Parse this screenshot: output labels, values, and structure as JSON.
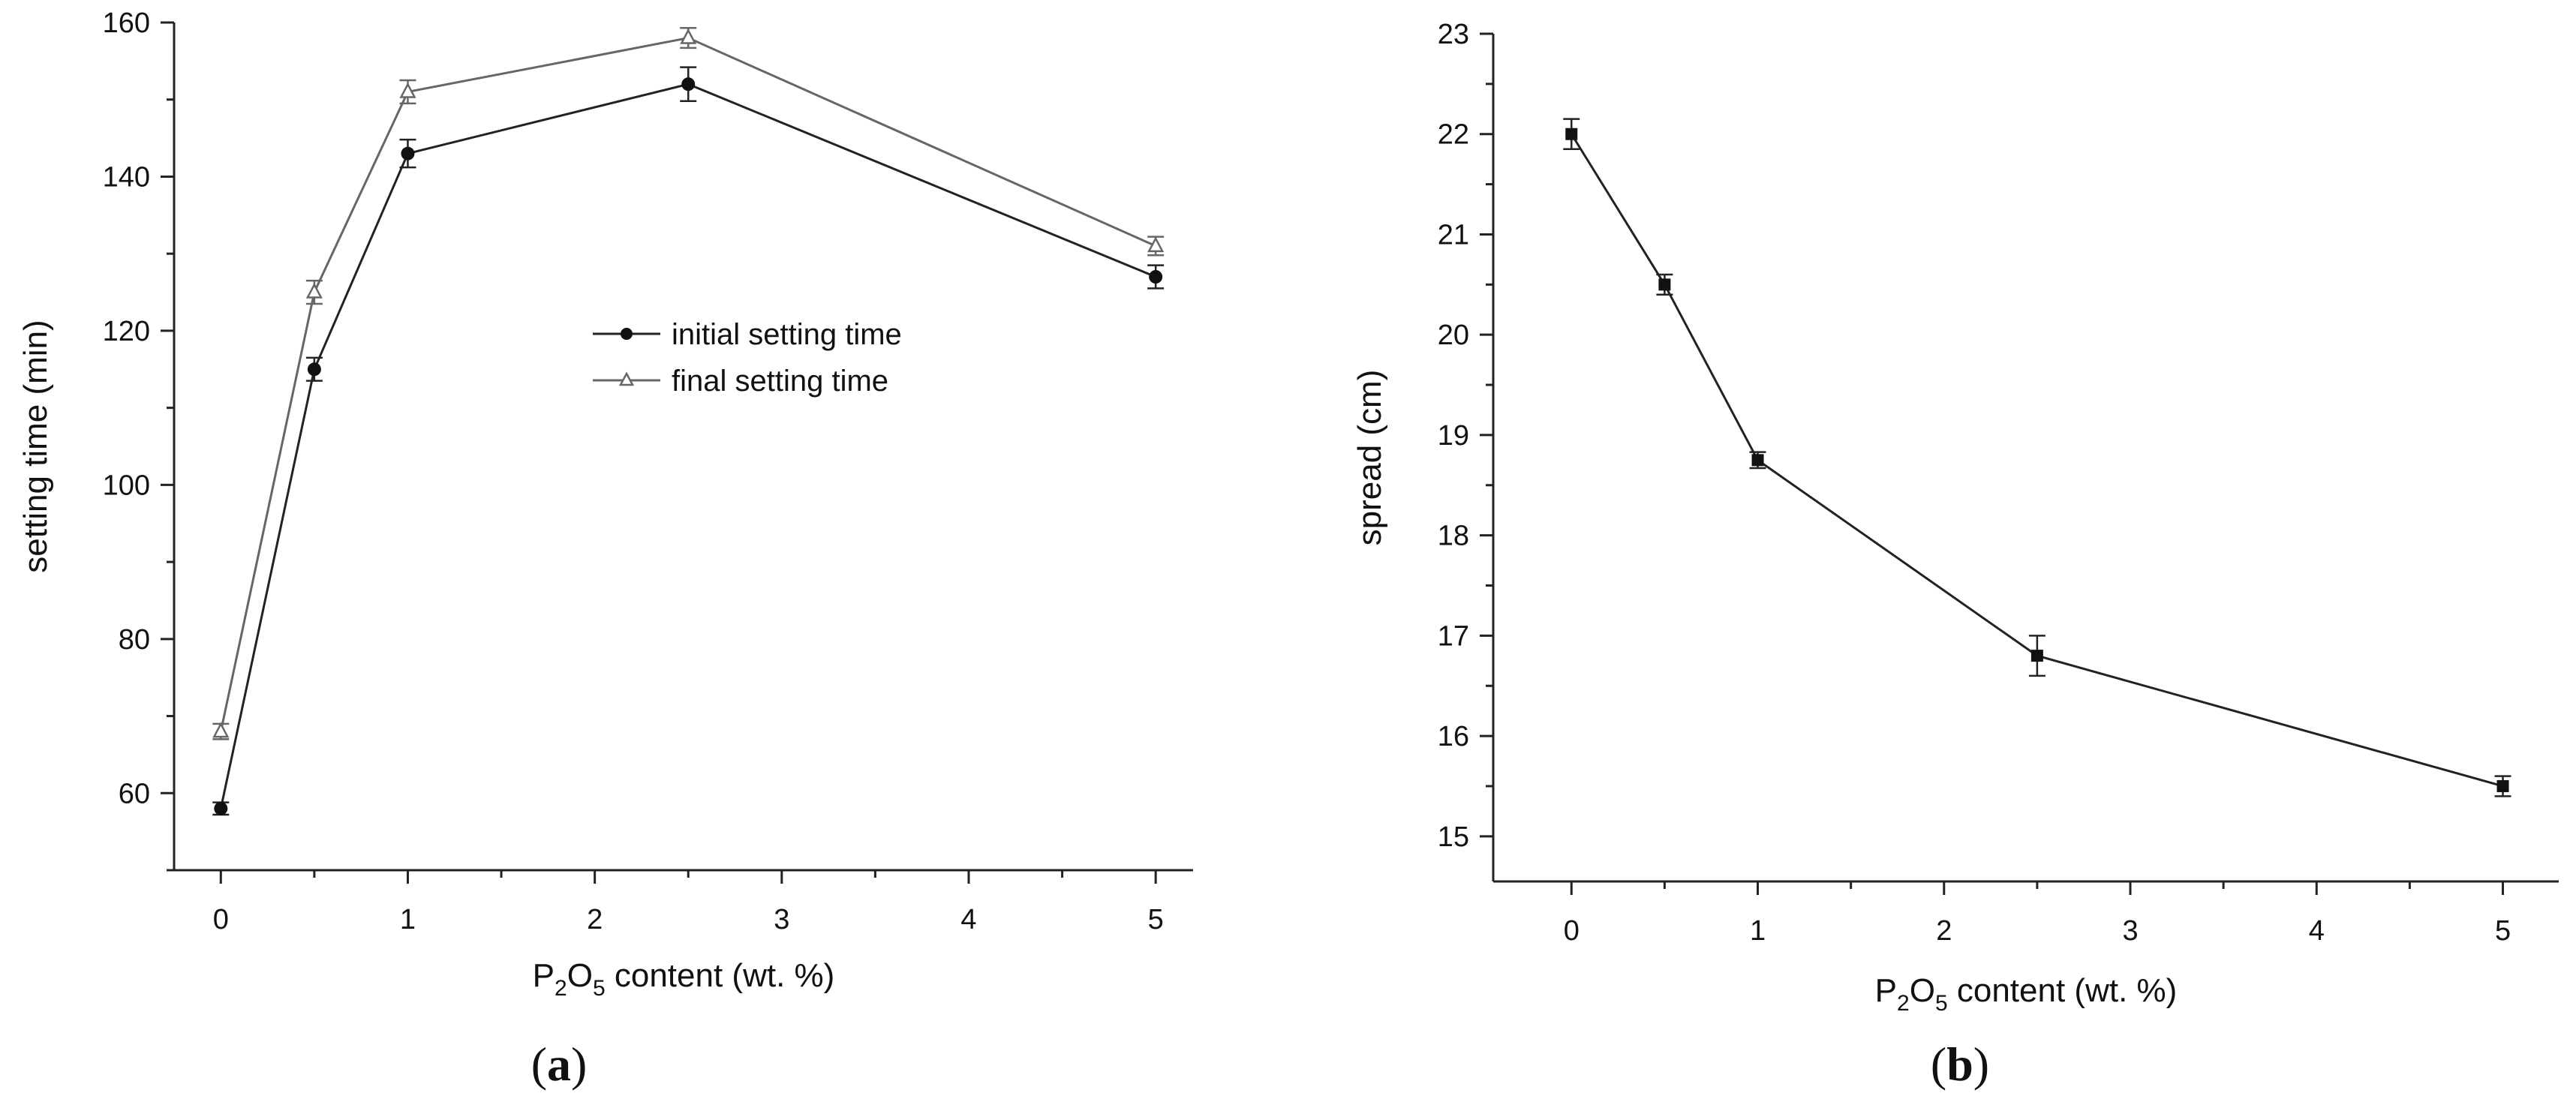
{
  "chart_data": [
    {
      "type": "line",
      "panel_label": "(a)",
      "xlabel": {
        "main": "P",
        "sub1": "2",
        "mid": "O",
        "sub2": "5",
        "rest": " content  (wt. %)"
      },
      "ylabel": "setting time (min)",
      "xlim": [
        -0.25,
        5.2
      ],
      "ylim": [
        50,
        160
      ],
      "x_ticks": [
        0,
        1,
        2,
        3,
        4,
        5
      ],
      "x_tick_labels": [
        "0",
        "1",
        "2",
        "3",
        "4",
        "5"
      ],
      "y_ticks": [
        60,
        80,
        100,
        120,
        140,
        160
      ],
      "y_tick_labels": [
        "60",
        "80",
        "100",
        "120",
        "140",
        "160"
      ],
      "legend_position": "center",
      "grid": false,
      "series": [
        {
          "name": "initial setting time",
          "marker": "filled-circle",
          "color": "#222222",
          "x": [
            0,
            0.5,
            1,
            2.5,
            5
          ],
          "y": [
            58,
            115,
            143,
            152,
            127
          ],
          "err": [
            0.8,
            1.5,
            1.8,
            2.2,
            1.5
          ]
        },
        {
          "name": "final setting time",
          "marker": "open-triangle",
          "color": "#666666",
          "x": [
            0,
            0.5,
            1,
            2.5,
            5
          ],
          "y": [
            68,
            125,
            151,
            158,
            131
          ],
          "err": [
            1.0,
            1.5,
            1.5,
            1.3,
            1.2
          ]
        }
      ]
    },
    {
      "type": "line",
      "panel_label": "(b)",
      "xlabel": {
        "main": "P",
        "sub1": "2",
        "mid": "O",
        "sub2": "5",
        "rest": " content  (wt. %)"
      },
      "ylabel": "spread (cm)",
      "xlim": [
        -0.42,
        5.3
      ],
      "ylim": [
        14.55,
        23
      ],
      "x_ticks": [
        0,
        1,
        2,
        3,
        4,
        5
      ],
      "x_tick_labels": [
        "0",
        "1",
        "2",
        "3",
        "4",
        "5"
      ],
      "y_ticks": [
        15,
        16,
        17,
        18,
        19,
        20,
        21,
        22,
        23
      ],
      "y_tick_labels": [
        "15",
        "16",
        "17",
        "18",
        "19",
        "20",
        "21",
        "22",
        "23"
      ],
      "grid": false,
      "series": [
        {
          "marker": "filled-square",
          "color": "#222222",
          "x": [
            0,
            0.5,
            1,
            2.5,
            5
          ],
          "y": [
            22,
            20.5,
            18.75,
            16.8,
            15.5
          ],
          "err": [
            0.15,
            0.1,
            0.08,
            0.2,
            0.1
          ]
        }
      ]
    }
  ]
}
